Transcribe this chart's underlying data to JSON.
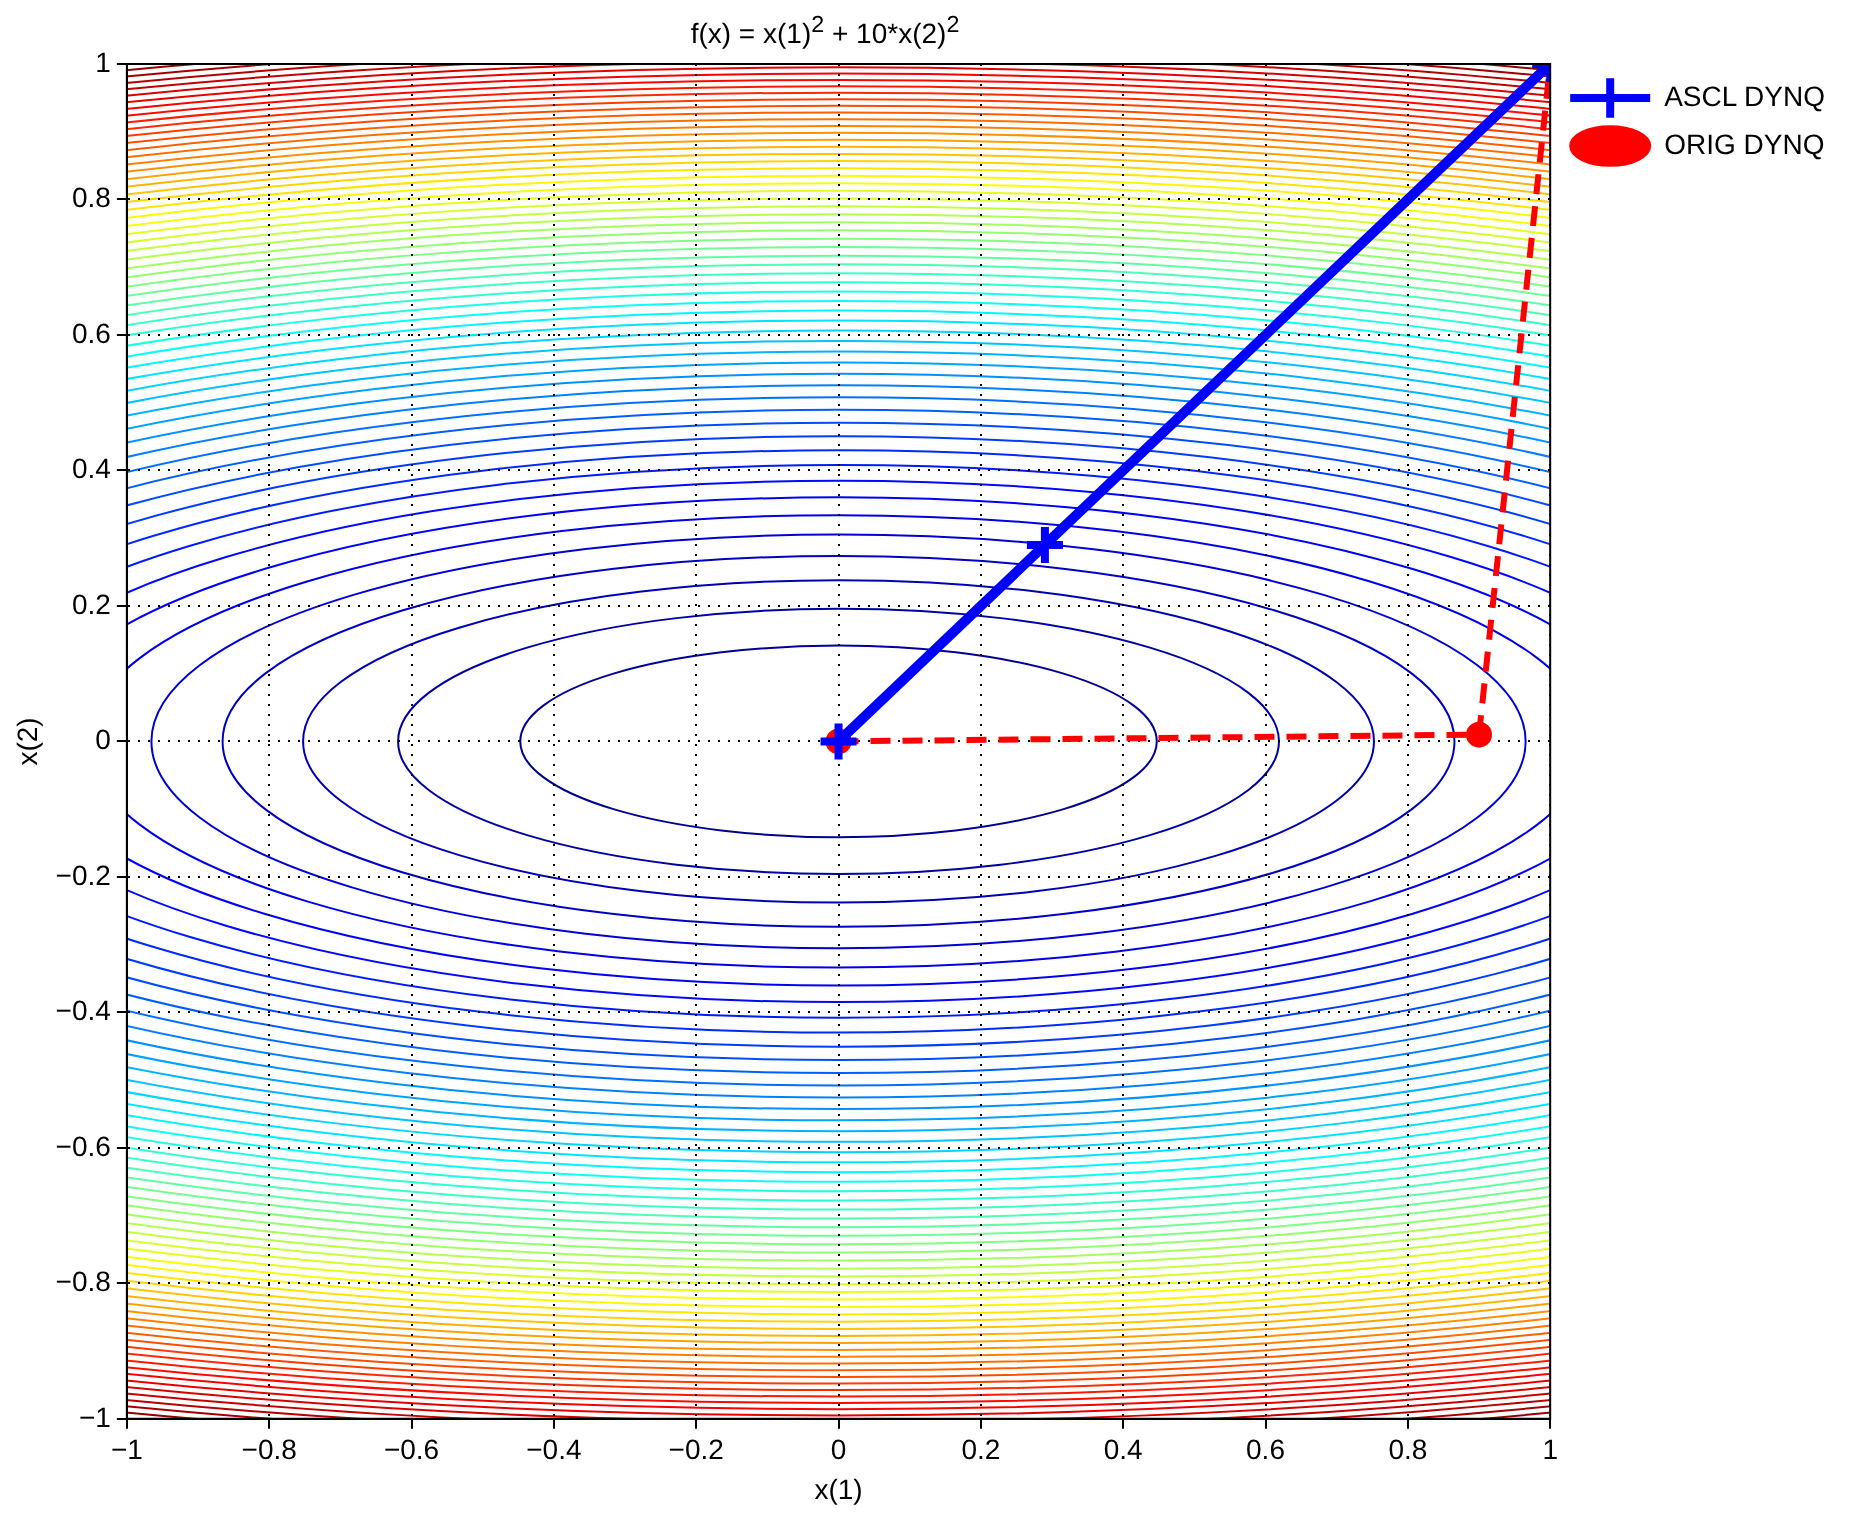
{
  "chart_data": {
    "type": "line",
    "title": "f(x) = x(1)$^{2}$ + 10*x(2)$^{2}$",
    "xlabel": "x(1)",
    "ylabel": "x(2)",
    "xlim": [
      -1,
      1
    ],
    "ylim": [
      -1,
      1
    ],
    "xticks": [
      -1,
      -0.8,
      -0.6,
      -0.4,
      -0.2,
      0,
      0.2,
      0.4,
      0.6,
      0.8,
      1
    ],
    "yticks": [
      -1,
      -0.8,
      -0.6,
      -0.4,
      -0.2,
      0,
      0.2,
      0.4,
      0.6,
      0.8,
      1
    ],
    "grid": true,
    "legend": "top right",
    "series": [
      {
        "name": "ASCL DYNQ",
        "color": "#0000ff",
        "x": [
          0,
          0.29,
          1
        ],
        "values": [
          0,
          0.29,
          1
        ],
        "marker": "cross",
        "line_style": "solid"
      },
      {
        "name": "ORIG DYNQ",
        "color": "#ff0000",
        "x": [
          0,
          0.9,
          1
        ],
        "values": [
          0,
          0.01,
          1
        ],
        "marker": "circle",
        "line_style": "dashed"
      }
    ]
  }
}
